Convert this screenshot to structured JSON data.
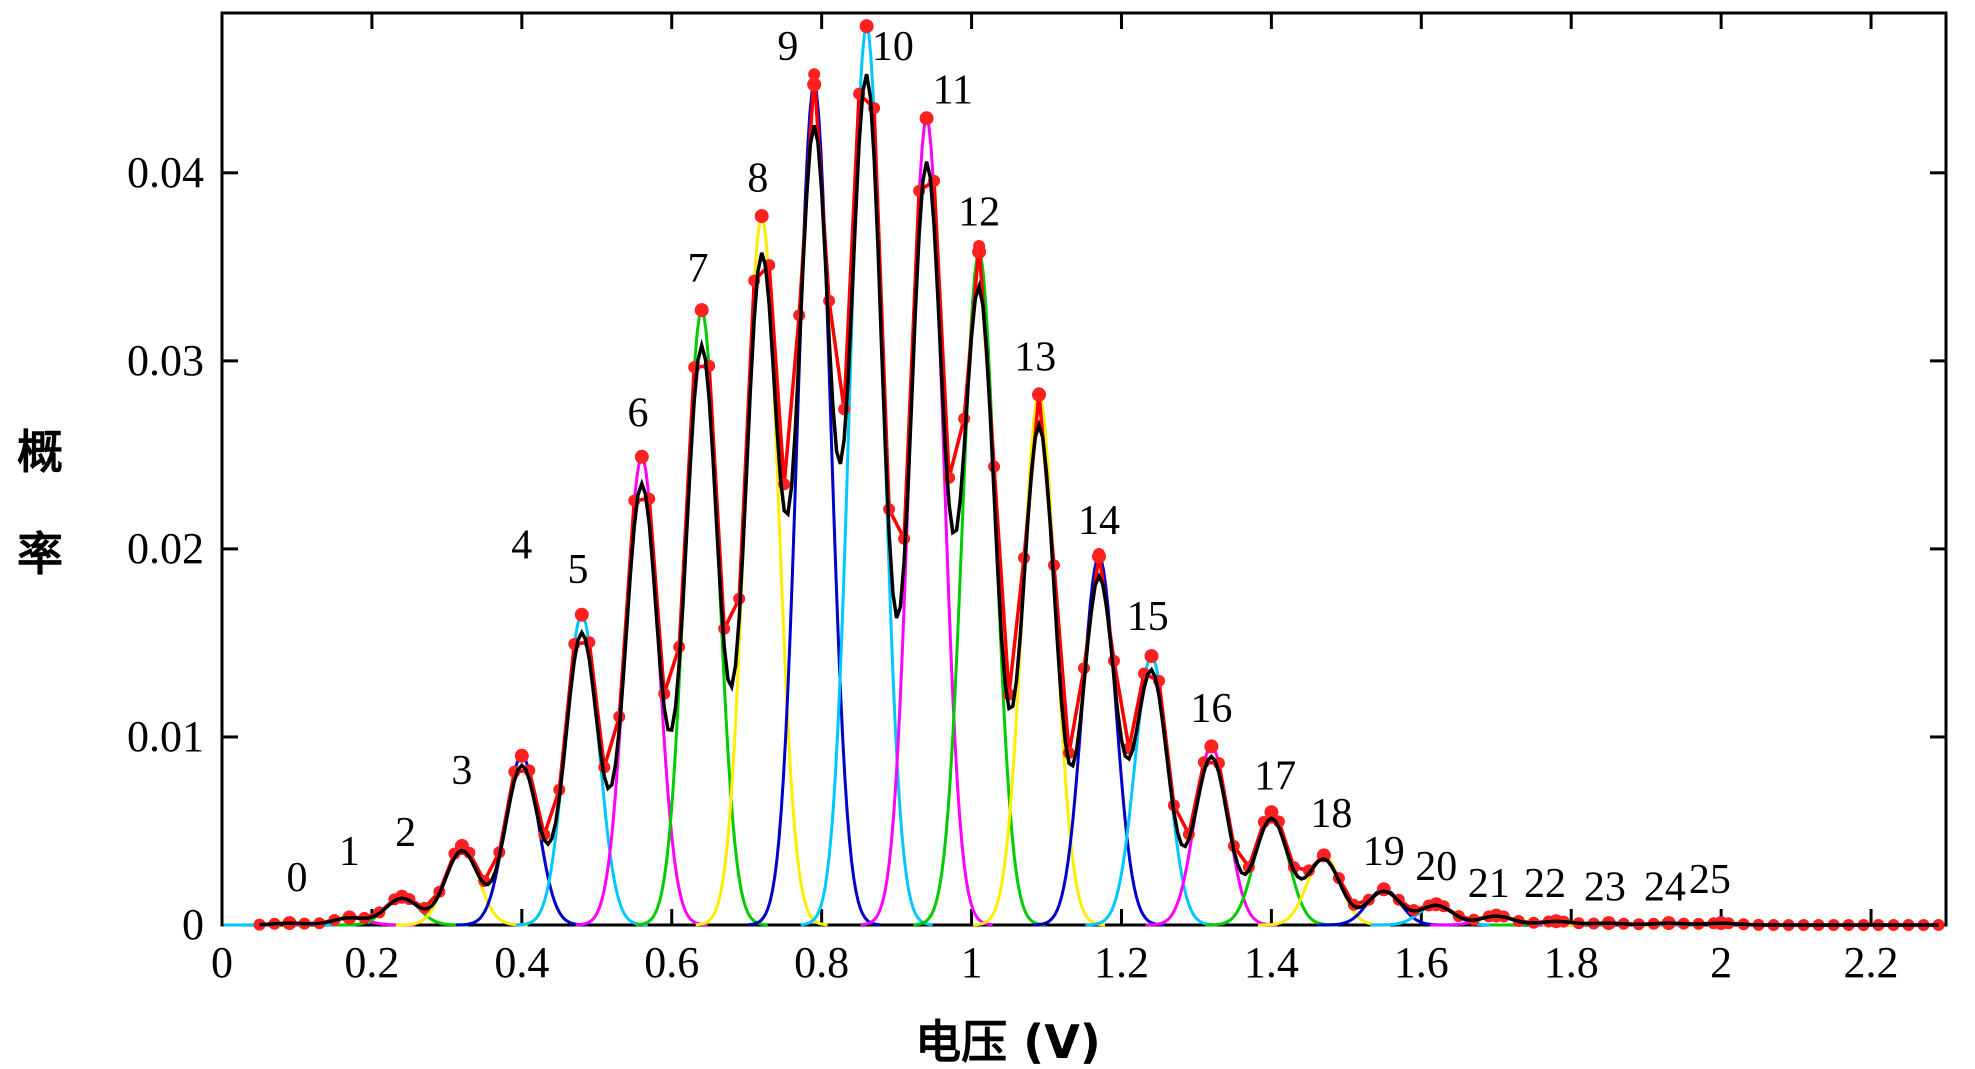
{
  "chart_data": {
    "type": "line",
    "title": "",
    "xlabel": "电压 (V)",
    "ylabel_chars": [
      "概",
      "率"
    ],
    "xlim": [
      0,
      2.3
    ],
    "ylim": [
      0,
      0.0485
    ],
    "x_ticks": [
      0,
      0.2,
      0.4,
      0.6,
      0.8,
      1,
      1.2,
      1.4,
      1.6,
      1.8,
      2,
      2.2
    ],
    "x_tick_labels": [
      "0",
      "0.2",
      "0.4",
      "0.6",
      "0.8",
      "1",
      "1.2",
      "1.4",
      "1.6",
      "1.8",
      "2",
      "2.2"
    ],
    "y_ticks": [
      0,
      0.01,
      0.02,
      0.03,
      0.04
    ],
    "y_tick_labels": [
      "0",
      "0.01",
      "0.02",
      "0.03",
      "0.04"
    ],
    "grid": false,
    "peak_width": 0.022,
    "peak_colors": [
      "#00c8ff",
      "#ff00ff",
      "#00cc00",
      "#ffee00",
      "#0000cc"
    ],
    "peaks": [
      {
        "n": "0",
        "x": 0.09,
        "y": 0.0001,
        "label_x": 0.1,
        "label_y": 0.0018
      },
      {
        "n": "1",
        "x": 0.17,
        "y": 0.0004,
        "label_x": 0.17,
        "label_y": 0.0032
      },
      {
        "n": "2",
        "x": 0.24,
        "y": 0.0015,
        "label_x": 0.245,
        "label_y": 0.0042
      },
      {
        "n": "3",
        "x": 0.32,
        "y": 0.0042,
        "label_x": 0.32,
        "label_y": 0.0075
      },
      {
        "n": "4",
        "x": 0.4,
        "y": 0.009,
        "label_x": 0.4,
        "label_y": 0.0195
      },
      {
        "n": "5",
        "x": 0.48,
        "y": 0.0165,
        "label_x": 0.475,
        "label_y": 0.0182
      },
      {
        "n": "6",
        "x": 0.56,
        "y": 0.0249,
        "label_x": 0.555,
        "label_y": 0.0265
      },
      {
        "n": "7",
        "x": 0.64,
        "y": 0.0327,
        "label_x": 0.635,
        "label_y": 0.0342
      },
      {
        "n": "8",
        "x": 0.72,
        "y": 0.0377,
        "label_x": 0.715,
        "label_y": 0.039
      },
      {
        "n": "9",
        "x": 0.79,
        "y": 0.0447,
        "label_x": 0.755,
        "label_y": 0.046
      },
      {
        "n": "10",
        "x": 0.86,
        "y": 0.0478,
        "label_x": 0.895,
        "label_y": 0.046
      },
      {
        "n": "11",
        "x": 0.94,
        "y": 0.0429,
        "label_x": 0.975,
        "label_y": 0.0437
      },
      {
        "n": "12",
        "x": 1.01,
        "y": 0.0358,
        "label_x": 1.01,
        "label_y": 0.0372
      },
      {
        "n": "13",
        "x": 1.09,
        "y": 0.0282,
        "label_x": 1.085,
        "label_y": 0.0295
      },
      {
        "n": "14",
        "x": 1.17,
        "y": 0.0196,
        "label_x": 1.17,
        "label_y": 0.0208
      },
      {
        "n": "15",
        "x": 1.24,
        "y": 0.0143,
        "label_x": 1.235,
        "label_y": 0.0157
      },
      {
        "n": "16",
        "x": 1.32,
        "y": 0.0095,
        "label_x": 1.32,
        "label_y": 0.0108
      },
      {
        "n": "17",
        "x": 1.4,
        "y": 0.006,
        "label_x": 1.405,
        "label_y": 0.0072
      },
      {
        "n": "18",
        "x": 1.47,
        "y": 0.0037,
        "label_x": 1.48,
        "label_y": 0.0052
      },
      {
        "n": "19",
        "x": 1.55,
        "y": 0.0019,
        "label_x": 1.55,
        "label_y": 0.0032
      },
      {
        "n": "20",
        "x": 1.62,
        "y": 0.0011,
        "label_x": 1.62,
        "label_y": 0.0024
      },
      {
        "n": "21",
        "x": 1.7,
        "y": 0.0005,
        "label_x": 1.69,
        "label_y": 0.0015
      },
      {
        "n": "22",
        "x": 1.78,
        "y": 0.0002,
        "label_x": 1.765,
        "label_y": 0.0015
      },
      {
        "n": "23",
        "x": 1.85,
        "y": 0.0001,
        "label_x": 1.845,
        "label_y": 0.0013
      },
      {
        "n": "24",
        "x": 1.93,
        "y": 0.0001,
        "label_x": 1.925,
        "label_y": 0.0013
      },
      {
        "n": "25",
        "x": 2.0,
        "y": 0.0001,
        "label_x": 1.985,
        "label_y": 0.0017
      }
    ]
  }
}
